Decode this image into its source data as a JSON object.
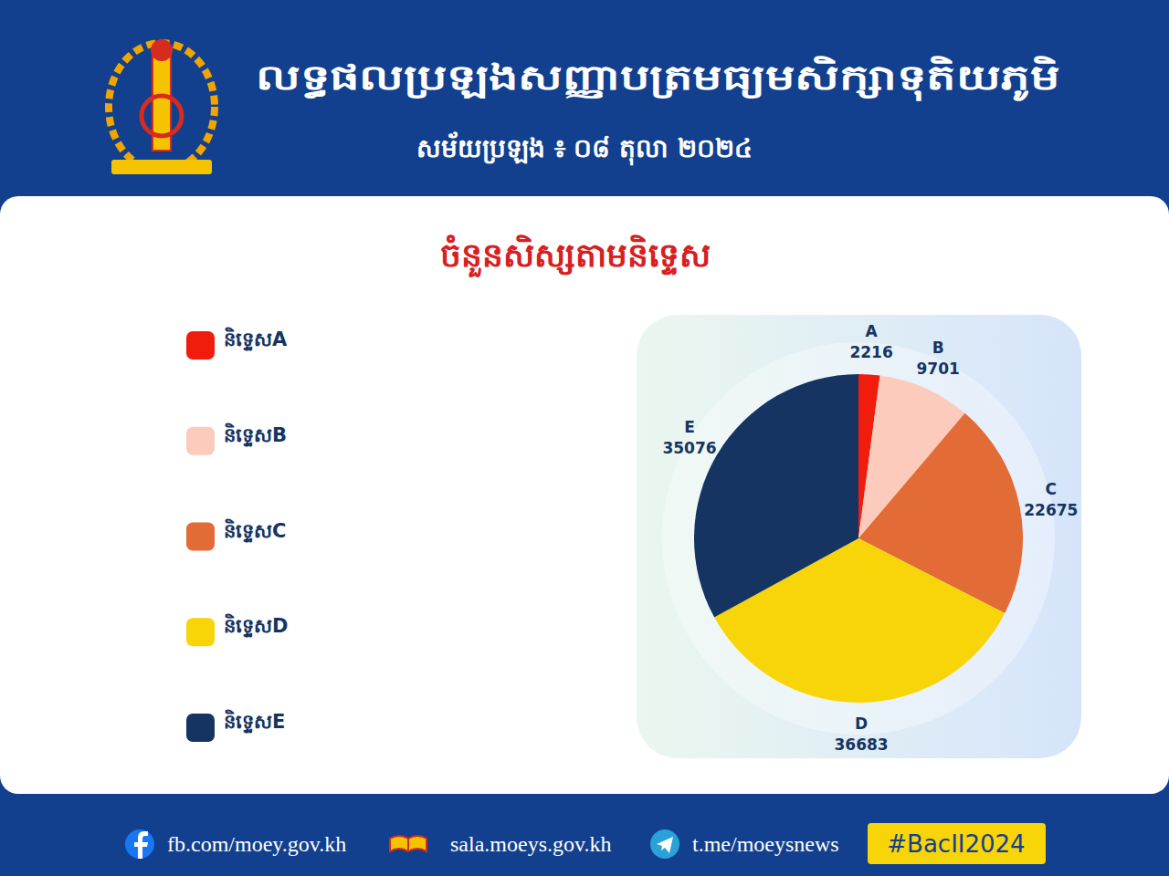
{
  "header": {
    "title": "លទ្ធផលប្រឡងសញ្ញាបត្រមធ្យមសិក្សាទុតិយភូមិ",
    "subtitle": "សម័យប្រឡង ៖ ០៨ តុលា ២០២៤"
  },
  "chart_data": {
    "type": "pie",
    "title": "ចំនួនសិស្សតាមនិទ្ទេស",
    "categories": [
      "A",
      "B",
      "C",
      "D",
      "E"
    ],
    "values": [
      2216,
      9701,
      22675,
      36683,
      35076
    ],
    "colors": [
      "#f21c0d",
      "#fccbbc",
      "#e36b36",
      "#f8d508",
      "#163462"
    ],
    "legend_labels": [
      "និទ្ទេសA",
      "និទ្ទេសB",
      "និទ្ទេសC",
      "និទ្ទេសD",
      "និទ្ទេសE"
    ],
    "data_labels": true
  },
  "footer": {
    "links": [
      "fb.com/moey.gov.kh",
      "sala.moeys.gov.kh",
      "t.me/moeysnews"
    ],
    "hashtag": "#BacII2024"
  }
}
